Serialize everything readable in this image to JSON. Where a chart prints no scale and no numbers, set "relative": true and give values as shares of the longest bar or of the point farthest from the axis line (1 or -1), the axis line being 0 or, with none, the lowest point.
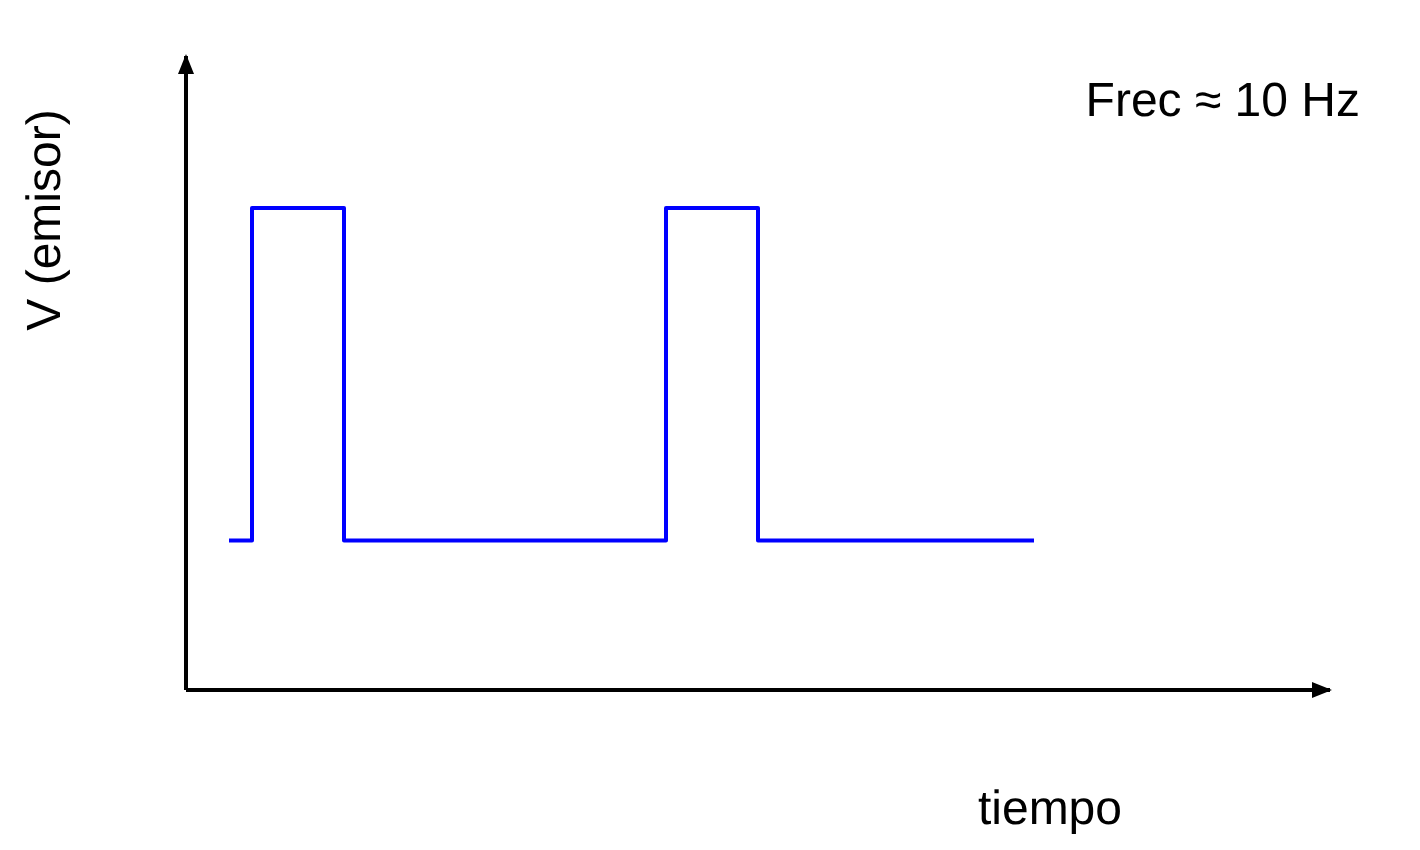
{
  "chart_data": {
    "type": "step",
    "relative": true,
    "xlabel": "tiempo",
    "ylabel": "V (emisor)",
    "annotations": [
      "Frec ≈ 10 Hz"
    ],
    "categories": [
      null,
      null,
      null,
      null,
      null,
      null,
      null,
      null,
      null,
      null,
      null,
      null,
      null,
      null,
      null,
      null,
      null,
      null,
      null,
      null,
      null,
      null,
      null,
      null,
      null,
      null,
      null,
      null,
      null,
      null,
      null,
      null,
      null,
      null,
      null,
      null
    ],
    "values": [
      0.31,
      1,
      1,
      1,
      1,
      0.31,
      0.31,
      0.31,
      0.31,
      0.31,
      0.31,
      0.31,
      0.31,
      0.31,
      0.31,
      0.31,
      0.31,
      0.31,
      0.31,
      1,
      1,
      1,
      1,
      0.31,
      0.31,
      0.31,
      0.31,
      0.31,
      0.31,
      0.31,
      0.31,
      0.31,
      0.31,
      0.31,
      0.31,
      0.31
    ],
    "color": "#0000ff"
  }
}
